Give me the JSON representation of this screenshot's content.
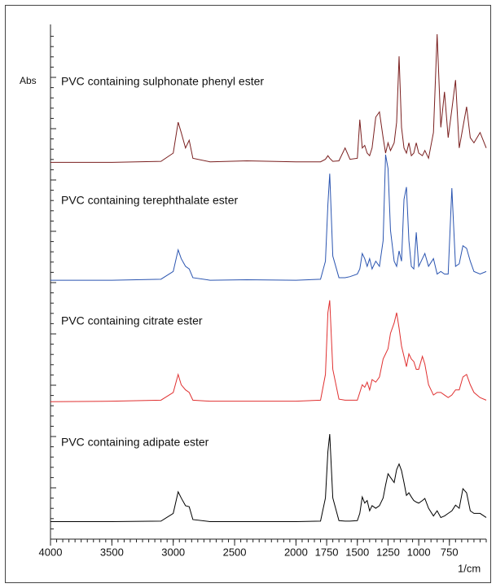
{
  "chart_data": {
    "type": "line",
    "ylabel": "Abs",
    "xlabel": "1/cm",
    "xlim": [
      4000,
      450
    ],
    "xticks": [
      4000,
      3500,
      3000,
      2500,
      2000,
      1750,
      1500,
      1250,
      1000,
      750
    ],
    "ylim": [
      0,
      100
    ],
    "x": [
      4000,
      3500,
      3100,
      3000,
      2960,
      2935,
      2900,
      2870,
      2840,
      2700,
      2400,
      2000,
      1800,
      1760,
      1740,
      1725,
      1700,
      1650,
      1600,
      1560,
      1500,
      1480,
      1460,
      1440,
      1420,
      1400,
      1380,
      1350,
      1320,
      1290,
      1270,
      1250,
      1230,
      1200,
      1180,
      1160,
      1140,
      1120,
      1100,
      1080,
      1060,
      1040,
      1020,
      1000,
      970,
      950,
      920,
      880,
      850,
      820,
      790,
      760,
      730,
      700,
      670,
      640,
      610,
      580,
      550,
      500,
      450
    ],
    "series": [
      {
        "name": "PVC containing sulphonate phenyl ester",
        "color": "#7a1f1f",
        "values": [
          73.2,
          73.2,
          73.4,
          75,
          81,
          79,
          76,
          77.5,
          74,
          73.3,
          73.5,
          73.3,
          73.3,
          73.8,
          74.5,
          74,
          73.4,
          73.5,
          76,
          73.8,
          74,
          81.5,
          76,
          76.5,
          75,
          74.5,
          76,
          82,
          83,
          78,
          75,
          77,
          75.5,
          77,
          81,
          93.8,
          80,
          76,
          75,
          77,
          74.5,
          75,
          77,
          75,
          74.5,
          75.5,
          74,
          79,
          98.1,
          80,
          86.9,
          78,
          83.5,
          89.2,
          76,
          80,
          84,
          78,
          77,
          79,
          76
        ]
      },
      {
        "name": "PVC containing terephthalate ester",
        "color": "#2a54b0",
        "values": [
          50.3,
          50.3,
          50.5,
          52,
          56.2,
          54.5,
          53,
          52.5,
          50.8,
          50.3,
          50.4,
          50.3,
          50.5,
          54,
          65,
          71,
          55,
          50.8,
          50.8,
          51,
          51.5,
          52.5,
          55.5,
          54.5,
          53,
          54.5,
          52.5,
          54,
          53,
          58,
          74.7,
          72,
          60,
          54,
          53,
          56,
          54,
          66,
          68.4,
          58,
          53,
          52.5,
          59.6,
          53,
          54.5,
          55.5,
          53,
          54.5,
          51.5,
          52,
          51.5,
          51.5,
          68.2,
          53,
          53.5,
          57,
          56.5,
          54,
          52,
          51.5,
          52
        ]
      },
      {
        "name": "PVC containing citrate ester",
        "color": "#e03030",
        "values": [
          26.7,
          26.8,
          27,
          28.5,
          32,
          30,
          29,
          28.5,
          27,
          26.8,
          26.8,
          26.8,
          27,
          32,
          44,
          46.4,
          33,
          27.2,
          27,
          27,
          27,
          28.5,
          30,
          29.5,
          30.5,
          29,
          31,
          30.5,
          31.5,
          35,
          36,
          37,
          40,
          42,
          44,
          41,
          37.5,
          35.5,
          33.5,
          36,
          35,
          34.5,
          33,
          33,
          35.5,
          34,
          30,
          28,
          28.5,
          28.5,
          28,
          27.5,
          28,
          29,
          29,
          31.5,
          32,
          30,
          28.5,
          27.5,
          27
        ]
      },
      {
        "name": "PVC containing adipate ester",
        "color": "#000000",
        "values": [
          3.4,
          3.4,
          3.5,
          5,
          9.2,
          8,
          6.5,
          6.3,
          3.8,
          3.4,
          3.4,
          3.4,
          3.5,
          8,
          17,
          20.4,
          8,
          3.6,
          3.5,
          3.5,
          3.6,
          5,
          8.2,
          7,
          7.5,
          5.5,
          6.5,
          6,
          6.5,
          8,
          10.5,
          12.7,
          12,
          11,
          13.5,
          14.6,
          13.3,
          11,
          8.5,
          9,
          8.2,
          7.5,
          7.2,
          7,
          7.5,
          7.9,
          6,
          4.5,
          5.5,
          4.2,
          4.5,
          5,
          5.5,
          6.6,
          6,
          9.8,
          9,
          5.5,
          5,
          5,
          4.2
        ]
      }
    ]
  }
}
